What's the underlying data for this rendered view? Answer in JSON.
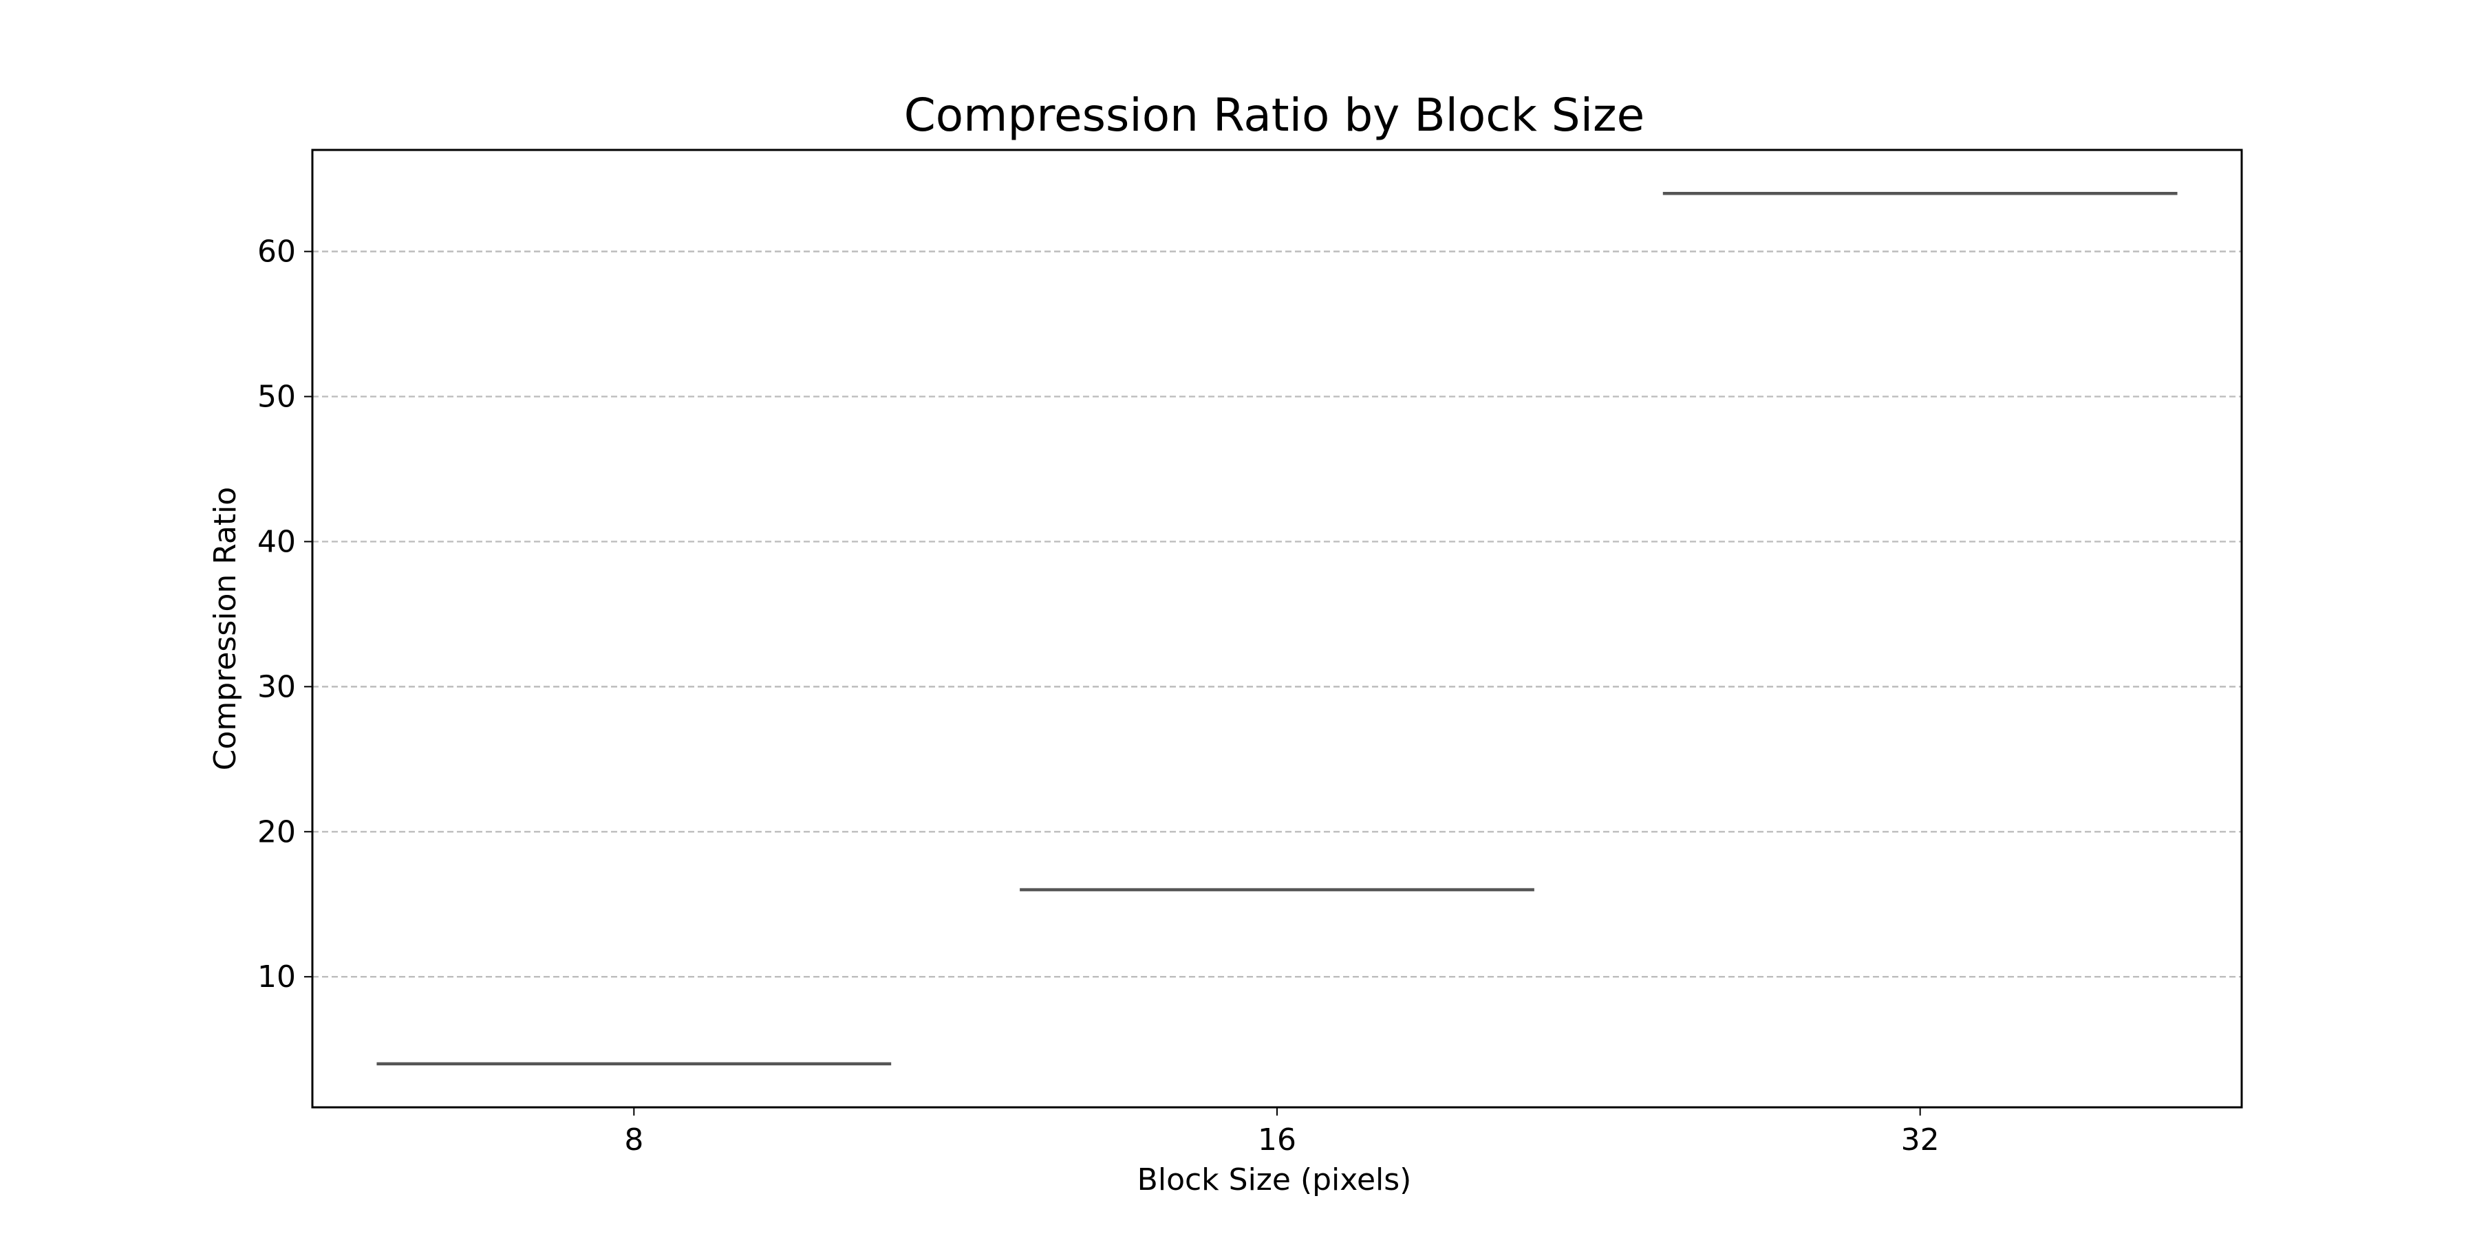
{
  "chart_data": {
    "type": "line",
    "title": "Compression Ratio by Block Size",
    "xlabel": "Block Size (pixels)",
    "ylabel": "Compression Ratio",
    "categories": [
      "8",
      "16",
      "32"
    ],
    "values": [
      4,
      16,
      64
    ],
    "ylim": [
      1,
      67
    ],
    "yticks": [
      10,
      20,
      30,
      40,
      50,
      60
    ],
    "grid": {
      "y": true,
      "x": false,
      "style": "dashed"
    },
    "colors": {
      "segment": "#555555",
      "grid": "#bdbdbd",
      "frame": "#000000"
    }
  }
}
